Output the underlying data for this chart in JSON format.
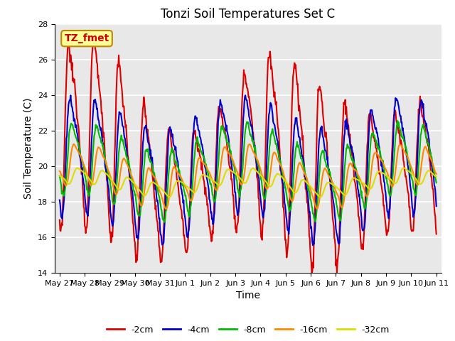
{
  "title": "Tonzi Soil Temperatures Set C",
  "xlabel": "Time",
  "ylabel": "Soil Temperature (C)",
  "ylim": [
    14,
    28
  ],
  "xlim": [
    -0.2,
    15.2
  ],
  "annotation_text": "TZ_fmet",
  "annotation_color": "#cc0000",
  "annotation_bg": "#ffff99",
  "annotation_border": "#bb8800",
  "plot_bg_color": "#e8e8e8",
  "grid_color": "white",
  "series_colors": {
    "-2cm": "#dd0000",
    "-4cm": "#0000cc",
    "-8cm": "#00bb00",
    "-16cm": "#ff8800",
    "-32cm": "#dddd00"
  },
  "xtick_labels": [
    "May 27",
    "May 28",
    "May 29",
    "May 30",
    "May 31",
    "Jun 1",
    "Jun 2",
    "Jun 3",
    "Jun 4",
    "Jun 5",
    "Jun 6",
    "Jun 7",
    "Jun 8",
    "Jun 9",
    "Jun 10",
    "Jun 11"
  ],
  "ytick_labels": [
    "14",
    "16",
    "18",
    "20",
    "22",
    "24",
    "26",
    "28"
  ],
  "ytick_values": [
    14,
    16,
    18,
    20,
    22,
    24,
    26,
    28
  ],
  "title_fontsize": 12,
  "label_fontsize": 10,
  "tick_fontsize": 8,
  "legend_fontsize": 9,
  "line_width": 1.5
}
